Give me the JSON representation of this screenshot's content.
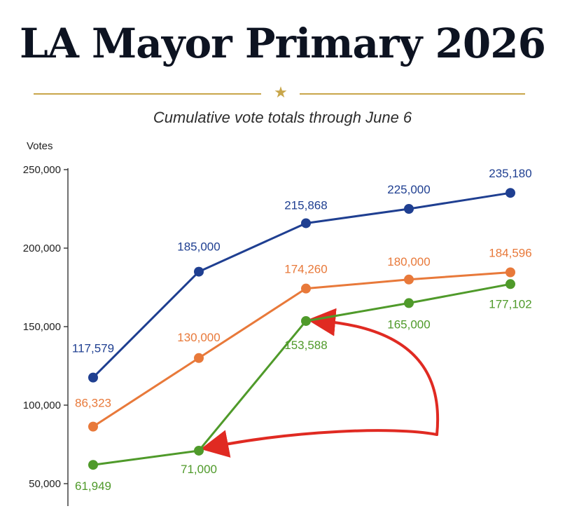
{
  "header": {
    "title": "LA Mayor Primary 2026",
    "subtitle": "Cumulative vote totals through June 6",
    "ornament_icon": "star-icon"
  },
  "colors": {
    "blue": "#1f3f91",
    "orange": "#e8793a",
    "green": "#4f9a2a",
    "arrow": "#e02a22",
    "gold": "#c8a64a"
  },
  "chart_data": {
    "type": "line",
    "title": "LA Mayor Primary 2026",
    "subtitle": "Cumulative vote totals through June 6",
    "ylabel": "Votes",
    "xlabel": "",
    "ylim": [
      50000,
      250000
    ],
    "yticks": [
      50000,
      100000,
      150000,
      200000,
      250000
    ],
    "ytick_labels": [
      "50,000",
      "100,000",
      "150,000",
      "200,000",
      "250,000"
    ],
    "x": [
      1,
      2,
      3,
      4,
      5
    ],
    "grid": false,
    "series": [
      {
        "color": "#1f3f91",
        "values": [
          117579,
          185000,
          215868,
          225000,
          235180
        ],
        "labels": [
          "117,579",
          "185,000",
          "215,868",
          "225,000",
          "235,180"
        ]
      },
      {
        "color": "#e8793a",
        "values": [
          86323,
          130000,
          174260,
          180000,
          184596
        ],
        "labels": [
          "86,323",
          "130,000",
          "174,260",
          "180,000",
          "184,596"
        ]
      },
      {
        "color": "#4f9a2a",
        "values": [
          61949,
          71000,
          153588,
          165000,
          177102
        ],
        "labels": [
          "61,949",
          "71,000",
          "153,588",
          "165,000",
          "177,102"
        ]
      }
    ],
    "annotations": [
      {
        "type": "arrow",
        "color": "#e02a22",
        "points_to": "71,000"
      },
      {
        "type": "arrow",
        "color": "#e02a22",
        "points_to": "153,588"
      }
    ]
  }
}
